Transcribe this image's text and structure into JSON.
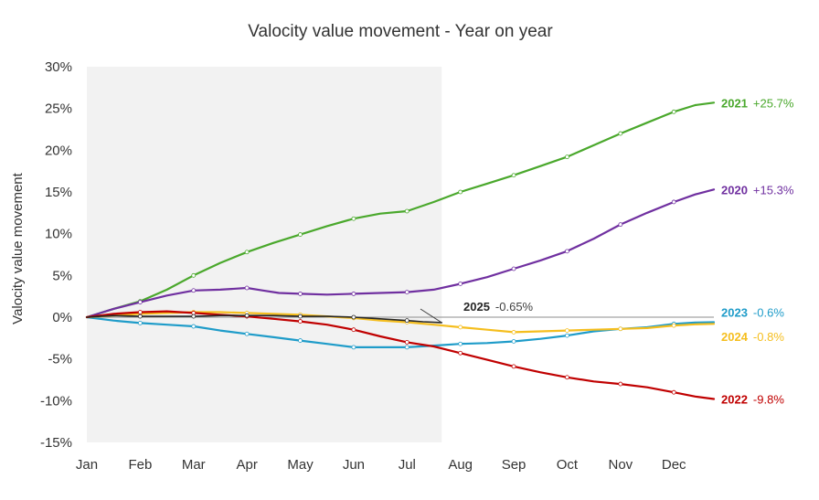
{
  "chart_data": {
    "type": "line",
    "title": "Valocity value movement - Year on year",
    "xlabel": "",
    "ylabel": "Valocity value movement",
    "categories": [
      "Jan",
      "Feb",
      "Mar",
      "Apr",
      "May",
      "Jun",
      "Jul",
      "Aug",
      "Sep",
      "Oct",
      "Nov",
      "Dec"
    ],
    "y_ticks": [
      "30%",
      "25%",
      "20%",
      "15%",
      "10%",
      "5%",
      "0%",
      "-5%",
      "-10%",
      "-15%"
    ],
    "ylim": [
      -15,
      30
    ],
    "xlim": [
      1,
      12.75
    ],
    "grid": false,
    "legend": "end-of-line labels",
    "shaded_region": {
      "x": [
        1,
        7.65
      ],
      "color": "#f2f2f2"
    },
    "zero_line": true,
    "series": [
      {
        "name": "2021",
        "end_label": "+25.7%",
        "color": "#4aa82c",
        "points": [
          [
            1,
            0
          ],
          [
            1.5,
            1.0
          ],
          [
            2,
            1.9
          ],
          [
            2.5,
            3.3
          ],
          [
            3,
            5.0
          ],
          [
            3.5,
            6.5
          ],
          [
            4,
            7.8
          ],
          [
            4.5,
            8.9
          ],
          [
            5,
            9.9
          ],
          [
            5.5,
            10.9
          ],
          [
            6,
            11.8
          ],
          [
            6.5,
            12.4
          ],
          [
            7,
            12.7
          ],
          [
            7.5,
            13.8
          ],
          [
            8,
            15.0
          ],
          [
            8.5,
            16.0
          ],
          [
            9,
            17.0
          ],
          [
            9.5,
            18.1
          ],
          [
            10,
            19.2
          ],
          [
            10.5,
            20.6
          ],
          [
            11,
            22.0
          ],
          [
            11.5,
            23.3
          ],
          [
            12,
            24.6
          ],
          [
            12.4,
            25.4
          ],
          [
            12.75,
            25.7
          ]
        ]
      },
      {
        "name": "2020",
        "end_label": "+15.3%",
        "color": "#7030a0",
        "points": [
          [
            1,
            0
          ],
          [
            1.5,
            1.0
          ],
          [
            2,
            1.8
          ],
          [
            2.5,
            2.6
          ],
          [
            3,
            3.2
          ],
          [
            3.5,
            3.3
          ],
          [
            4,
            3.5
          ],
          [
            4.3,
            3.2
          ],
          [
            4.6,
            2.9
          ],
          [
            5,
            2.8
          ],
          [
            5.5,
            2.7
          ],
          [
            6,
            2.8
          ],
          [
            6.5,
            2.9
          ],
          [
            7,
            3.0
          ],
          [
            7.5,
            3.3
          ],
          [
            8,
            4.0
          ],
          [
            8.5,
            4.8
          ],
          [
            9,
            5.8
          ],
          [
            9.5,
            6.8
          ],
          [
            10,
            7.9
          ],
          [
            10.5,
            9.4
          ],
          [
            11,
            11.1
          ],
          [
            11.5,
            12.5
          ],
          [
            12,
            13.8
          ],
          [
            12.4,
            14.7
          ],
          [
            12.75,
            15.3
          ]
        ]
      },
      {
        "name": "2023",
        "end_label": "-0.6%",
        "color": "#1f9cc9",
        "points": [
          [
            1,
            0
          ],
          [
            1.5,
            -0.4
          ],
          [
            2,
            -0.7
          ],
          [
            2.5,
            -0.9
          ],
          [
            3,
            -1.1
          ],
          [
            3.5,
            -1.6
          ],
          [
            4,
            -2.0
          ],
          [
            4.5,
            -2.4
          ],
          [
            5,
            -2.8
          ],
          [
            5.5,
            -3.2
          ],
          [
            6,
            -3.6
          ],
          [
            6.5,
            -3.6
          ],
          [
            7,
            -3.6
          ],
          [
            7.5,
            -3.4
          ],
          [
            8,
            -3.2
          ],
          [
            8.5,
            -3.1
          ],
          [
            9,
            -2.9
          ],
          [
            9.5,
            -2.6
          ],
          [
            10,
            -2.2
          ],
          [
            10.5,
            -1.7
          ],
          [
            11,
            -1.4
          ],
          [
            11.5,
            -1.2
          ],
          [
            12,
            -0.8
          ],
          [
            12.4,
            -0.65
          ],
          [
            12.75,
            -0.6
          ]
        ]
      },
      {
        "name": "2024",
        "end_label": "-0.8%",
        "color": "#f5be1e",
        "points": [
          [
            1,
            0
          ],
          [
            1.5,
            0.2
          ],
          [
            2,
            0.4
          ],
          [
            2.5,
            0.5
          ],
          [
            3,
            0.6
          ],
          [
            3.5,
            0.6
          ],
          [
            4,
            0.5
          ],
          [
            4.5,
            0.4
          ],
          [
            5,
            0.3
          ],
          [
            5.5,
            0.1
          ],
          [
            6,
            -0.1
          ],
          [
            6.5,
            -0.4
          ],
          [
            7,
            -0.6
          ],
          [
            7.5,
            -0.9
          ],
          [
            8,
            -1.2
          ],
          [
            8.5,
            -1.5
          ],
          [
            9,
            -1.8
          ],
          [
            9.5,
            -1.7
          ],
          [
            10,
            -1.6
          ],
          [
            10.5,
            -1.5
          ],
          [
            11,
            -1.4
          ],
          [
            11.5,
            -1.3
          ],
          [
            12,
            -1.0
          ],
          [
            12.4,
            -0.85
          ],
          [
            12.75,
            -0.8
          ]
        ]
      },
      {
        "name": "2022",
        "end_label": "-9.8%",
        "color": "#c00000",
        "points": [
          [
            1,
            0
          ],
          [
            1.5,
            0.4
          ],
          [
            2,
            0.6
          ],
          [
            2.5,
            0.7
          ],
          [
            3,
            0.5
          ],
          [
            3.5,
            0.3
          ],
          [
            4,
            0.1
          ],
          [
            4.5,
            -0.2
          ],
          [
            5,
            -0.5
          ],
          [
            5.5,
            -0.9
          ],
          [
            6,
            -1.5
          ],
          [
            6.5,
            -2.3
          ],
          [
            7,
            -3.0
          ],
          [
            7.5,
            -3.5
          ],
          [
            8,
            -4.3
          ],
          [
            8.5,
            -5.1
          ],
          [
            9,
            -5.9
          ],
          [
            9.5,
            -6.6
          ],
          [
            10,
            -7.2
          ],
          [
            10.5,
            -7.7
          ],
          [
            11,
            -8.0
          ],
          [
            11.5,
            -8.4
          ],
          [
            12,
            -9.0
          ],
          [
            12.4,
            -9.5
          ],
          [
            12.75,
            -9.8
          ]
        ]
      },
      {
        "name": "2025",
        "end_label": "-0.65%",
        "color": "#262626",
        "points": [
          [
            1,
            0
          ],
          [
            1.5,
            0.2
          ],
          [
            2,
            0.1
          ],
          [
            2.5,
            0.1
          ],
          [
            3,
            0.1
          ],
          [
            3.5,
            0.2
          ],
          [
            4,
            0.2
          ],
          [
            4.5,
            0.2
          ],
          [
            5,
            0.1
          ],
          [
            5.5,
            0.1
          ],
          [
            6,
            0.0
          ],
          [
            6.5,
            -0.2
          ],
          [
            7,
            -0.4
          ],
          [
            7.3,
            -0.55
          ],
          [
            7.65,
            -0.65
          ]
        ]
      }
    ]
  }
}
